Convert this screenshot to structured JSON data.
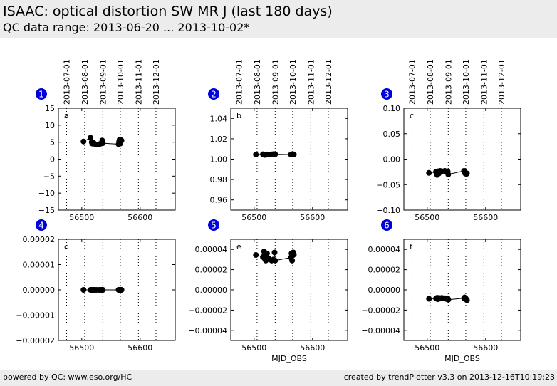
{
  "header": {
    "title": "ISAAC: optical distortion SW MR J (last 180 days)",
    "subtitle": "QC data range: 2013-06-20 ... 2013-10-02*"
  },
  "footer": {
    "left": "powered by QC: www.eso.org/HC",
    "right": "created by trendPlotter v3.3 on 2013-12-16T10:19:23"
  },
  "colors": {
    "badge": "#0000dd",
    "marker": "#000000",
    "header_bg": "#ececec"
  },
  "chart_data": [
    {
      "type": "line",
      "badge": "1",
      "letter": "a",
      "xlim": [
        56460,
        56660
      ],
      "ylim": [
        -15,
        15
      ],
      "xticks": [
        56500,
        56600
      ],
      "xticklabels": [
        "56500",
        "56600"
      ],
      "show_xticklabels": true,
      "xlabel": "",
      "yticks": [
        15,
        10,
        5,
        0,
        -5,
        -10,
        -15
      ],
      "yticklabels": [
        "15",
        "10",
        "5",
        "0",
        "−5",
        "−10",
        "−15"
      ],
      "date_ticks": [
        56474,
        56505,
        56536,
        56566,
        56597,
        56627
      ],
      "date_labels": [
        "2013-07-01",
        "2013-08-01",
        "2013-09-01",
        "2013-10-01",
        "2013-11-01",
        "2013-12-01"
      ],
      "show_date_labels": true,
      "x": [
        56503,
        56515,
        56517,
        56518,
        56520,
        56522,
        56525,
        56530,
        56533,
        56535,
        56536,
        56563,
        56564,
        56565,
        56566,
        56567,
        56568
      ],
      "y": [
        5.2,
        6.3,
        5.0,
        4.6,
        4.8,
        4.5,
        4.3,
        4.4,
        4.6,
        5.5,
        4.7,
        4.4,
        5.2,
        5.8,
        4.6,
        5.6,
        5.5
      ]
    },
    {
      "type": "line",
      "badge": "2",
      "letter": "b",
      "xlim": [
        56460,
        56660
      ],
      "ylim": [
        0.95,
        1.05
      ],
      "xticks": [
        56500,
        56600
      ],
      "xticklabels": [
        "56500",
        "56600"
      ],
      "show_xticklabels": true,
      "xlabel": "",
      "yticks": [
        1.04,
        1.02,
        1.0,
        0.98,
        0.96
      ],
      "yticklabels": [
        "1.04",
        "1.02",
        "1.00",
        "0.98",
        "0.96"
      ],
      "date_ticks": [
        56474,
        56505,
        56536,
        56566,
        56597,
        56627
      ],
      "date_labels": [
        "2013-07-01",
        "2013-08-01",
        "2013-09-01",
        "2013-10-01",
        "2013-11-01",
        "2013-12-01"
      ],
      "show_date_labels": true,
      "x": [
        56503,
        56515,
        56517,
        56518,
        56520,
        56522,
        56525,
        56530,
        56533,
        56535,
        56536,
        56563,
        56564,
        56565,
        56566,
        56567,
        56568
      ],
      "y": [
        1.0045,
        1.0048,
        1.0044,
        1.0042,
        1.0043,
        1.0046,
        1.0044,
        1.0047,
        1.0049,
        1.0046,
        1.0048,
        1.0045,
        1.0047,
        1.0046,
        1.0048,
        1.0047,
        1.0046
      ]
    },
    {
      "type": "line",
      "badge": "3",
      "letter": "c",
      "xlim": [
        56460,
        56660
      ],
      "ylim": [
        -0.1,
        0.1
      ],
      "xticks": [
        56500,
        56600
      ],
      "xticklabels": [
        "56500",
        "56600"
      ],
      "show_xticklabels": true,
      "xlabel": "",
      "yticks": [
        0.1,
        0.05,
        0,
        -0.05,
        -0.1
      ],
      "yticklabels": [
        "0.10",
        "0.05",
        "0.00",
        "−0.05",
        "−0.10"
      ],
      "date_ticks": [
        56474,
        56505,
        56536,
        56566,
        56597,
        56627
      ],
      "date_labels": [
        "2013-07-01",
        "2013-08-01",
        "2013-09-01",
        "2013-10-01",
        "2013-11-01",
        "2013-12-01"
      ],
      "show_date_labels": true,
      "x": [
        56503,
        56515,
        56517,
        56518,
        56520,
        56522,
        56525,
        56530,
        56533,
        56535,
        56536,
        56563,
        56564,
        56565,
        56566,
        56567,
        56568
      ],
      "y": [
        -0.027,
        -0.025,
        -0.031,
        -0.024,
        -0.028,
        -0.023,
        -0.024,
        -0.023,
        -0.025,
        -0.024,
        -0.03,
        -0.023,
        -0.026,
        -0.028,
        -0.027,
        -0.029,
        -0.028
      ]
    },
    {
      "type": "line",
      "badge": "4",
      "letter": "d",
      "xlim": [
        56460,
        56660
      ],
      "ylim": [
        -2e-05,
        2e-05
      ],
      "xticks": [
        56500,
        56600
      ],
      "xticklabels": [
        "56500",
        "56600"
      ],
      "show_xticklabels": true,
      "xlabel": "",
      "yticks": [
        2e-05,
        1e-05,
        0,
        -1e-05,
        -2e-05
      ],
      "yticklabels": [
        "0.00002",
        "0.00001",
        "0.00000",
        "−0.00001",
        "−0.00002"
      ],
      "date_ticks": [
        56474,
        56505,
        56536,
        56566,
        56597,
        56627
      ],
      "date_labels": [
        "2013-07-01",
        "2013-08-01",
        "2013-09-01",
        "2013-10-01",
        "2013-11-01",
        "2013-12-01"
      ],
      "show_date_labels": false,
      "x": [
        56503,
        56515,
        56517,
        56518,
        56520,
        56522,
        56525,
        56530,
        56533,
        56535,
        56536,
        56563,
        56564,
        56565,
        56566,
        56567,
        56568
      ],
      "y": [
        0,
        0,
        0,
        0,
        0,
        0,
        0,
        0,
        0,
        0,
        0,
        0,
        0,
        0,
        0,
        0,
        0
      ]
    },
    {
      "type": "line",
      "badge": "5",
      "letter": "e",
      "xlim": [
        56460,
        56660
      ],
      "ylim": [
        -5e-05,
        5e-05
      ],
      "xticks": [
        56500,
        56600
      ],
      "xticklabels": [
        "56500",
        "56600"
      ],
      "show_xticklabels": true,
      "xlabel": "MJD_OBS",
      "yticks": [
        4e-05,
        2e-05,
        0,
        -2e-05,
        -4e-05
      ],
      "yticklabels": [
        "0.00004",
        "0.00002",
        "0.00000",
        "−0.00002",
        "−0.00004"
      ],
      "date_ticks": [
        56474,
        56505,
        56536,
        56566,
        56597,
        56627
      ],
      "date_labels": [
        "2013-07-01",
        "2013-08-01",
        "2013-09-01",
        "2013-10-01",
        "2013-11-01",
        "2013-12-01"
      ],
      "show_date_labels": false,
      "x": [
        56503,
        56515,
        56517,
        56518,
        56520,
        56522,
        56525,
        56530,
        56533,
        56535,
        56536,
        56563,
        56564,
        56565,
        56566,
        56567,
        56568
      ],
      "y": [
        3.45e-05,
        3.25e-05,
        3.8e-05,
        3.1e-05,
        2.9e-05,
        3.6e-05,
        3.1e-05,
        2.9e-05,
        3e-05,
        3.7e-05,
        2.9e-05,
        3.2e-05,
        3.6e-05,
        2.9e-05,
        3.4e-05,
        3.7e-05,
        3.5e-05
      ]
    },
    {
      "type": "line",
      "badge": "6",
      "letter": "f",
      "xlim": [
        56460,
        56660
      ],
      "ylim": [
        -5e-05,
        5e-05
      ],
      "xticks": [
        56500,
        56600
      ],
      "xticklabels": [
        "56500",
        "56600"
      ],
      "show_xticklabels": true,
      "xlabel": "MJD_OBS",
      "yticks": [
        4e-05,
        2e-05,
        0,
        -2e-05,
        -4e-05
      ],
      "yticklabels": [
        "0.00004",
        "0.00002",
        "0.00000",
        "−0.00002",
        "−0.00004"
      ],
      "date_ticks": [
        56474,
        56505,
        56536,
        56566,
        56597,
        56627
      ],
      "date_labels": [
        "2013-07-01",
        "2013-08-01",
        "2013-09-01",
        "2013-10-01",
        "2013-11-01",
        "2013-12-01"
      ],
      "show_date_labels": false,
      "x": [
        56503,
        56515,
        56517,
        56518,
        56520,
        56522,
        56525,
        56530,
        56533,
        56535,
        56536,
        56563,
        56564,
        56565,
        56566,
        56567,
        56568
      ],
      "y": [
        -8.8e-06,
        -8.5e-06,
        -7.8e-06,
        -9.2e-06,
        -8e-06,
        -8.6e-06,
        -7.9e-06,
        -8.3e-06,
        -9e-06,
        -8.4e-06,
        -9.7e-06,
        -8.2e-06,
        -7.5e-06,
        -9e-06,
        -8.5e-06,
        -9.5e-06,
        -1.02e-05
      ]
    }
  ]
}
